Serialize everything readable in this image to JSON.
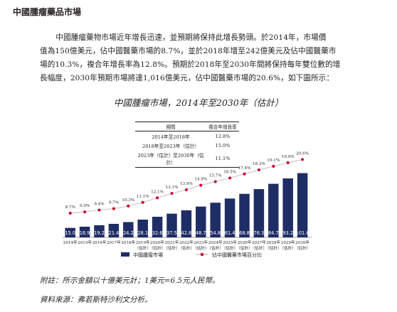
{
  "heading": "中國腫瘤藥品市場",
  "paragraph_lines": [
    "中國腫瘤藥物市場近年增長迅速，並預期將保持此增長勢頭。於2014年，市場價",
    "值為150億美元，佔中國醫藥市場的8.7%，並於2018年增至242億美元及佔中國醫藥市",
    "場的10.3%，複合年增長率為12.8%。預期於2018年至2030年間將保持每年雙位數的增",
    "長幅度，2030年預期市場將達1,016億美元，佔中國醫藥市場的20.6%，如下圖所示："
  ],
  "cagr_table": {
    "headers": [
      "期間",
      "複合年增長率"
    ],
    "rows": [
      [
        "2014年至2018年",
        "12.8%"
      ],
      [
        "2018年至2023年（估計）",
        "15.0%"
      ],
      [
        "2023年（估計）至2030年（估計）",
        "11.1%"
      ]
    ]
  },
  "note": "附註：所示金額以十億美元計；1美元=6.5元人民幣。",
  "source": "資料來源：弗若斯特沙利文分析。",
  "colors": {
    "bar": "#1f2d66",
    "line": "#c9c9c9",
    "marker": "#c8102e"
  },
  "chart_data": {
    "type": "bar",
    "title": "中國腫瘤市場，2014年至2030年（估計）",
    "categories": [
      "2014年",
      "2015年",
      "2016年",
      "2017年",
      "2018年",
      "2019年",
      "2020年",
      "2021年",
      "2022年",
      "2023年",
      "2024年",
      "2025年",
      "2026年",
      "2027年",
      "2028年",
      "2029年",
      "2030年"
    ],
    "category_estimate_label": "（估計）",
    "estimate_from_index": 5,
    "series": [
      {
        "name": "中國腫瘤市場",
        "type": "bar",
        "values": [
          15.0,
          16.9,
          19.2,
          21.4,
          24.2,
          28.1,
          32.6,
          37.5,
          42.8,
          48.7,
          54.8,
          61.4,
          68.8,
          76.3,
          84.7,
          93.2,
          101.6
        ]
      },
      {
        "name": "佔中國醫藥市場百分比",
        "type": "line",
        "labels": [
          "8.7%",
          "9.0%",
          "9.4%",
          "9.7%",
          "10.3%",
          "11.1%",
          "12.1%",
          "13.1%",
          "13.9%",
          "14.9%",
          "15.7%",
          "16.5%",
          "17.4%",
          "18.3%",
          "19.1%",
          "19.9%",
          "20.6%"
        ],
        "values": [
          8.7,
          9.0,
          9.4,
          9.7,
          10.3,
          11.1,
          12.1,
          13.1,
          13.9,
          14.9,
          15.7,
          16.5,
          17.4,
          18.3,
          19.1,
          19.9,
          20.6
        ]
      }
    ],
    "legend_position": "bottom",
    "grid": false
  }
}
